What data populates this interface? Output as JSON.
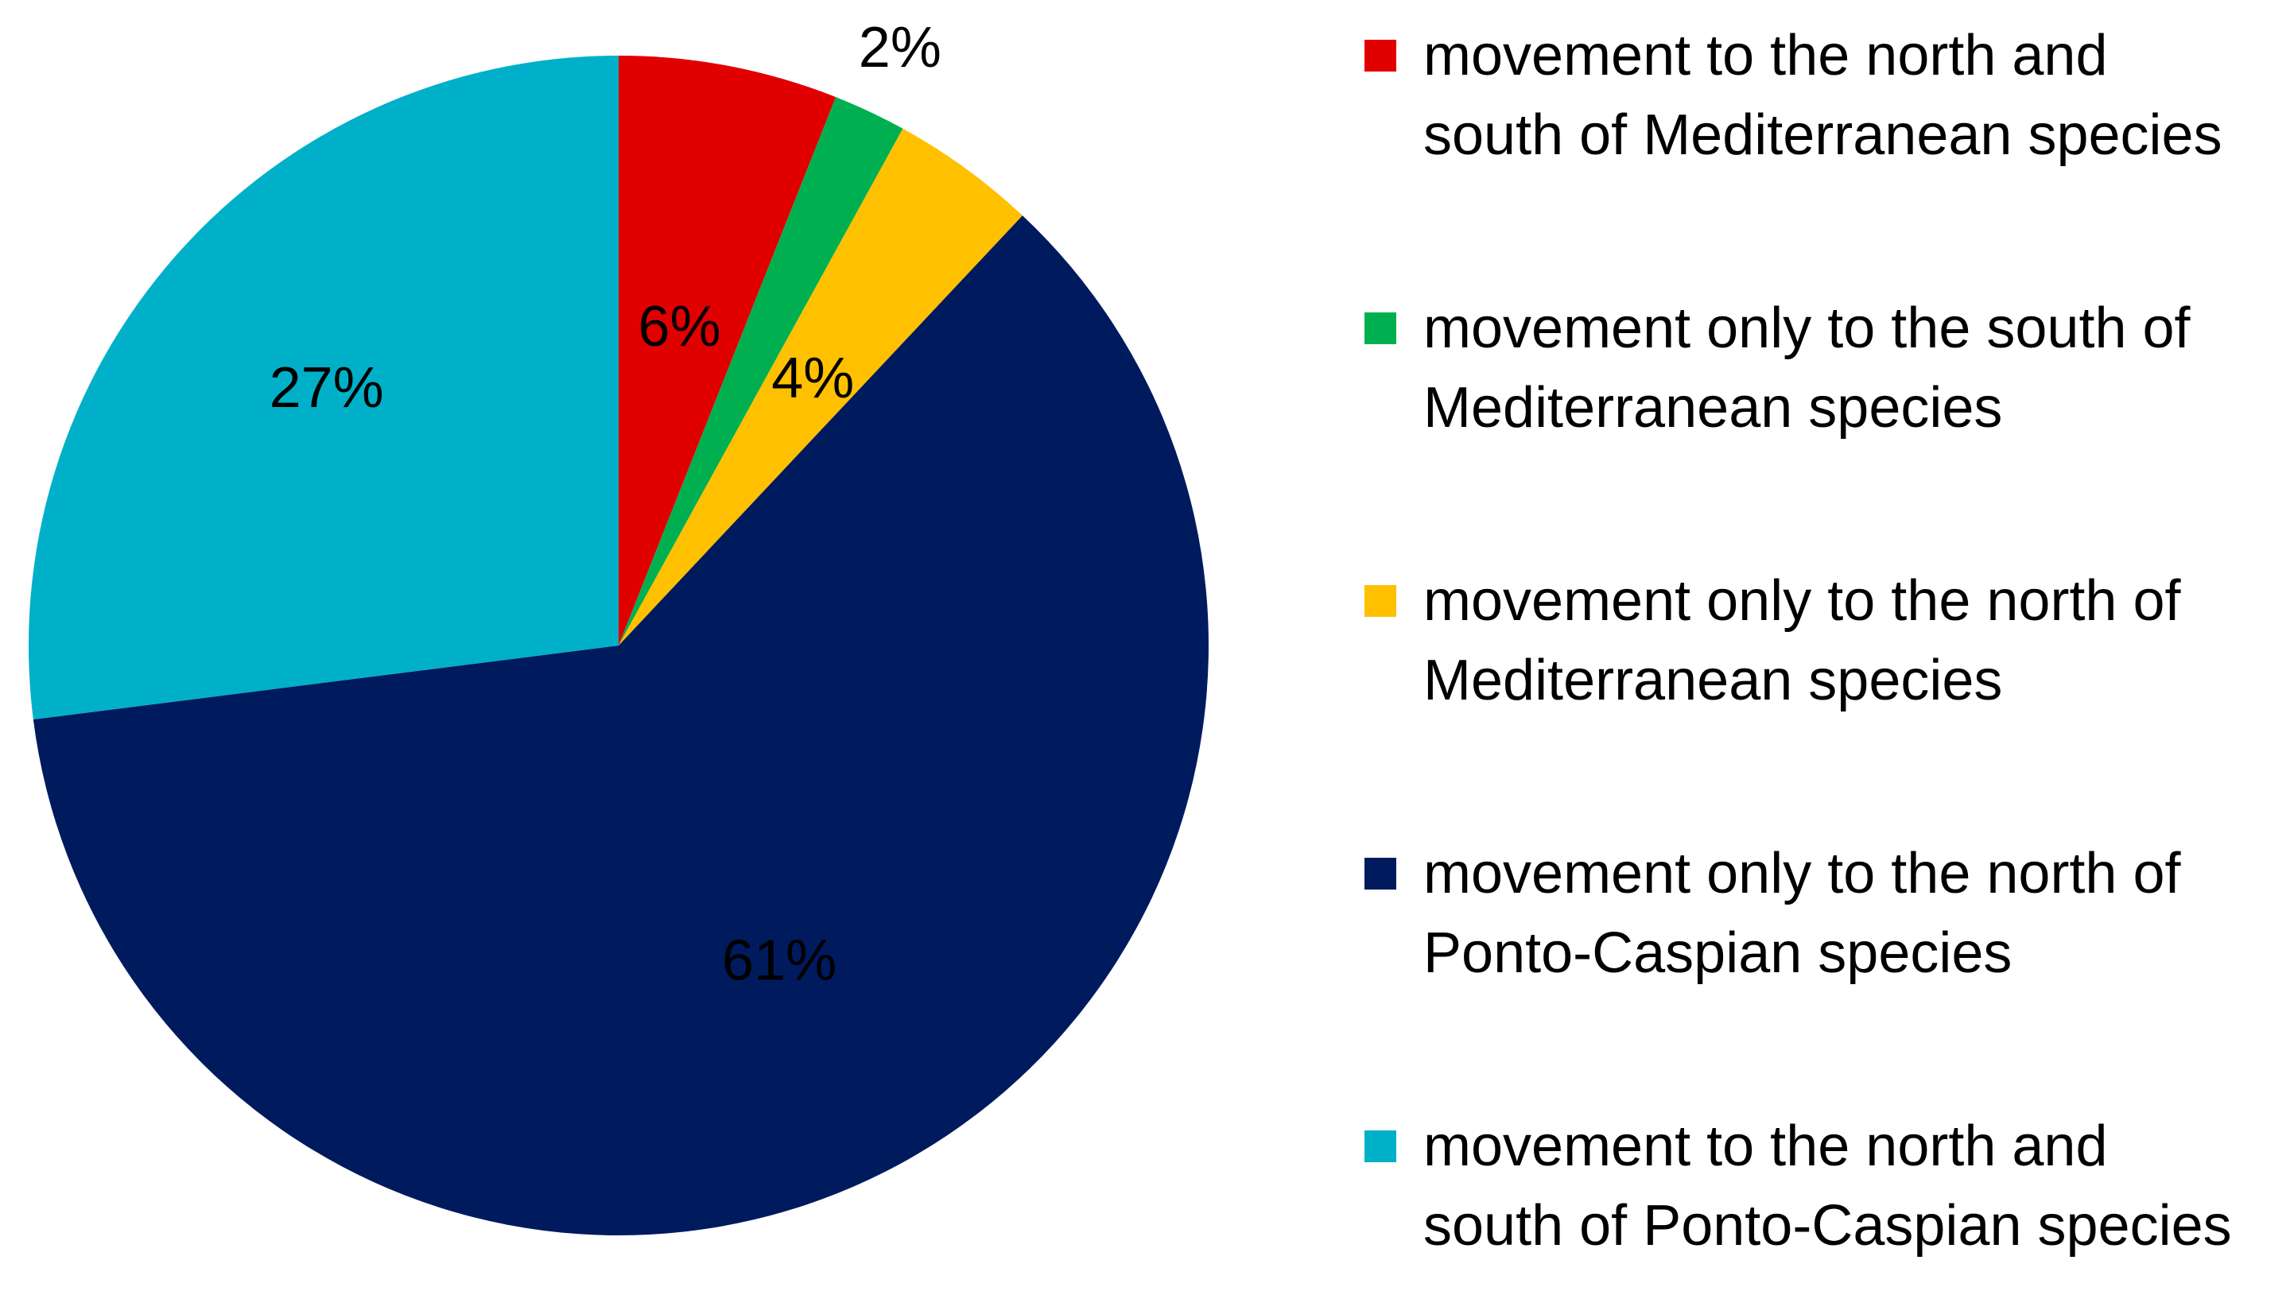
{
  "chart_data": {
    "type": "pie",
    "title": "",
    "slices": [
      {
        "label": "movement to the north and south of Mediterranean species",
        "legend_lines": [
          "movement to the north and",
          "south of Mediterranean species"
        ],
        "value": 6,
        "display": "6%",
        "color": "#e00000"
      },
      {
        "label": "movement only to the south of Mediterranean species",
        "legend_lines": [
          "movement only to the south of",
          "Mediterranean species"
        ],
        "value": 2,
        "display": "2%",
        "color": "#00b050"
      },
      {
        "label": "movement only to the north of Mediterranean species",
        "legend_lines": [
          "movement only to the north of",
          "Mediterranean species"
        ],
        "value": 4,
        "display": "4%",
        "color": "#ffc000"
      },
      {
        "label": "movement only to the north of Ponto-Caspian species",
        "legend_lines": [
          "movement only to the north of",
          "Ponto-Caspian species"
        ],
        "value": 61,
        "display": "61%",
        "color": "#001a5e"
      },
      {
        "label": "movement to the north and south of Ponto-Caspian species",
        "legend_lines": [
          "movement to the north and",
          "south of Ponto-Caspian species"
        ],
        "value": 27,
        "display": "27%",
        "color": "#00b0c8"
      }
    ],
    "legend_position": "right",
    "start_angle": "12 o'clock",
    "direction": "clockwise"
  }
}
